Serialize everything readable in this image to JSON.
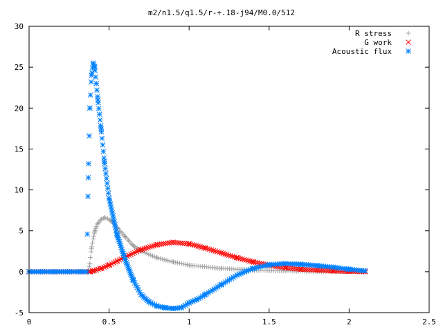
{
  "chart_data": {
    "type": "scatter",
    "title": "m2/n1.5/q1.5/r-+.18-j94/M0.0/512",
    "xlabel": "",
    "ylabel": "",
    "xlim": [
      0,
      2.5
    ],
    "ylim": [
      -5,
      30
    ],
    "xticks": [
      0,
      0.5,
      1,
      1.5,
      2,
      2.5
    ],
    "yticks": [
      -5,
      0,
      5,
      10,
      15,
      20,
      25,
      30
    ],
    "grid": false,
    "legend_position": "top-right",
    "series": [
      {
        "name": "R stress",
        "marker": "plus",
        "color": "#a0a0a0",
        "x": [
          0,
          0.37,
          0.38,
          0.39,
          0.4,
          0.41,
          0.42,
          0.43,
          0.45,
          0.47,
          0.49,
          0.52,
          0.55,
          0.6,
          0.65,
          0.7,
          0.8,
          0.9,
          1.0,
          1.2,
          1.4,
          1.6,
          1.8,
          2.0,
          2.1
        ],
        "y": [
          0,
          0,
          1.0,
          2.8,
          4.0,
          4.9,
          5.5,
          5.9,
          6.4,
          6.6,
          6.5,
          6.1,
          5.4,
          4.3,
          3.2,
          2.5,
          1.7,
          1.2,
          0.8,
          0.4,
          0.2,
          0.1,
          0.05,
          0.02,
          0.0
        ]
      },
      {
        "name": "G work",
        "marker": "cross",
        "color": "#ff0000",
        "x": [
          0,
          0.38,
          0.4,
          0.45,
          0.5,
          0.55,
          0.6,
          0.7,
          0.8,
          0.9,
          1.0,
          1.1,
          1.2,
          1.3,
          1.4,
          1.5,
          1.6,
          1.7,
          1.8,
          1.9,
          2.0,
          2.1
        ],
        "y": [
          0,
          0,
          0.1,
          0.4,
          0.8,
          1.3,
          1.8,
          2.7,
          3.3,
          3.6,
          3.4,
          2.9,
          2.3,
          1.7,
          1.2,
          0.8,
          0.5,
          0.3,
          0.2,
          0.1,
          0.05,
          0.0
        ]
      },
      {
        "name": "Acoustic flux",
        "marker": "star",
        "color": "#0080ff",
        "x": [
          0,
          0.36,
          0.37,
          0.38,
          0.39,
          0.4,
          0.41,
          0.42,
          0.43,
          0.45,
          0.47,
          0.5,
          0.55,
          0.6,
          0.65,
          0.7,
          0.75,
          0.8,
          0.85,
          0.9,
          0.95,
          1.0,
          1.05,
          1.1,
          1.2,
          1.3,
          1.4,
          1.5,
          1.6,
          1.7,
          1.8,
          1.9,
          2.0,
          2.1
        ],
        "y": [
          0,
          0,
          11.5,
          20.0,
          24.0,
          25.5,
          25.0,
          23.0,
          21.0,
          17.5,
          13.5,
          9.0,
          4.5,
          1.5,
          -1.0,
          -2.8,
          -3.7,
          -4.2,
          -4.4,
          -4.5,
          -4.4,
          -3.8,
          -3.4,
          -2.8,
          -1.6,
          -0.4,
          0.4,
          0.85,
          1.0,
          0.9,
          0.75,
          0.55,
          0.3,
          0.1
        ]
      }
    ]
  }
}
